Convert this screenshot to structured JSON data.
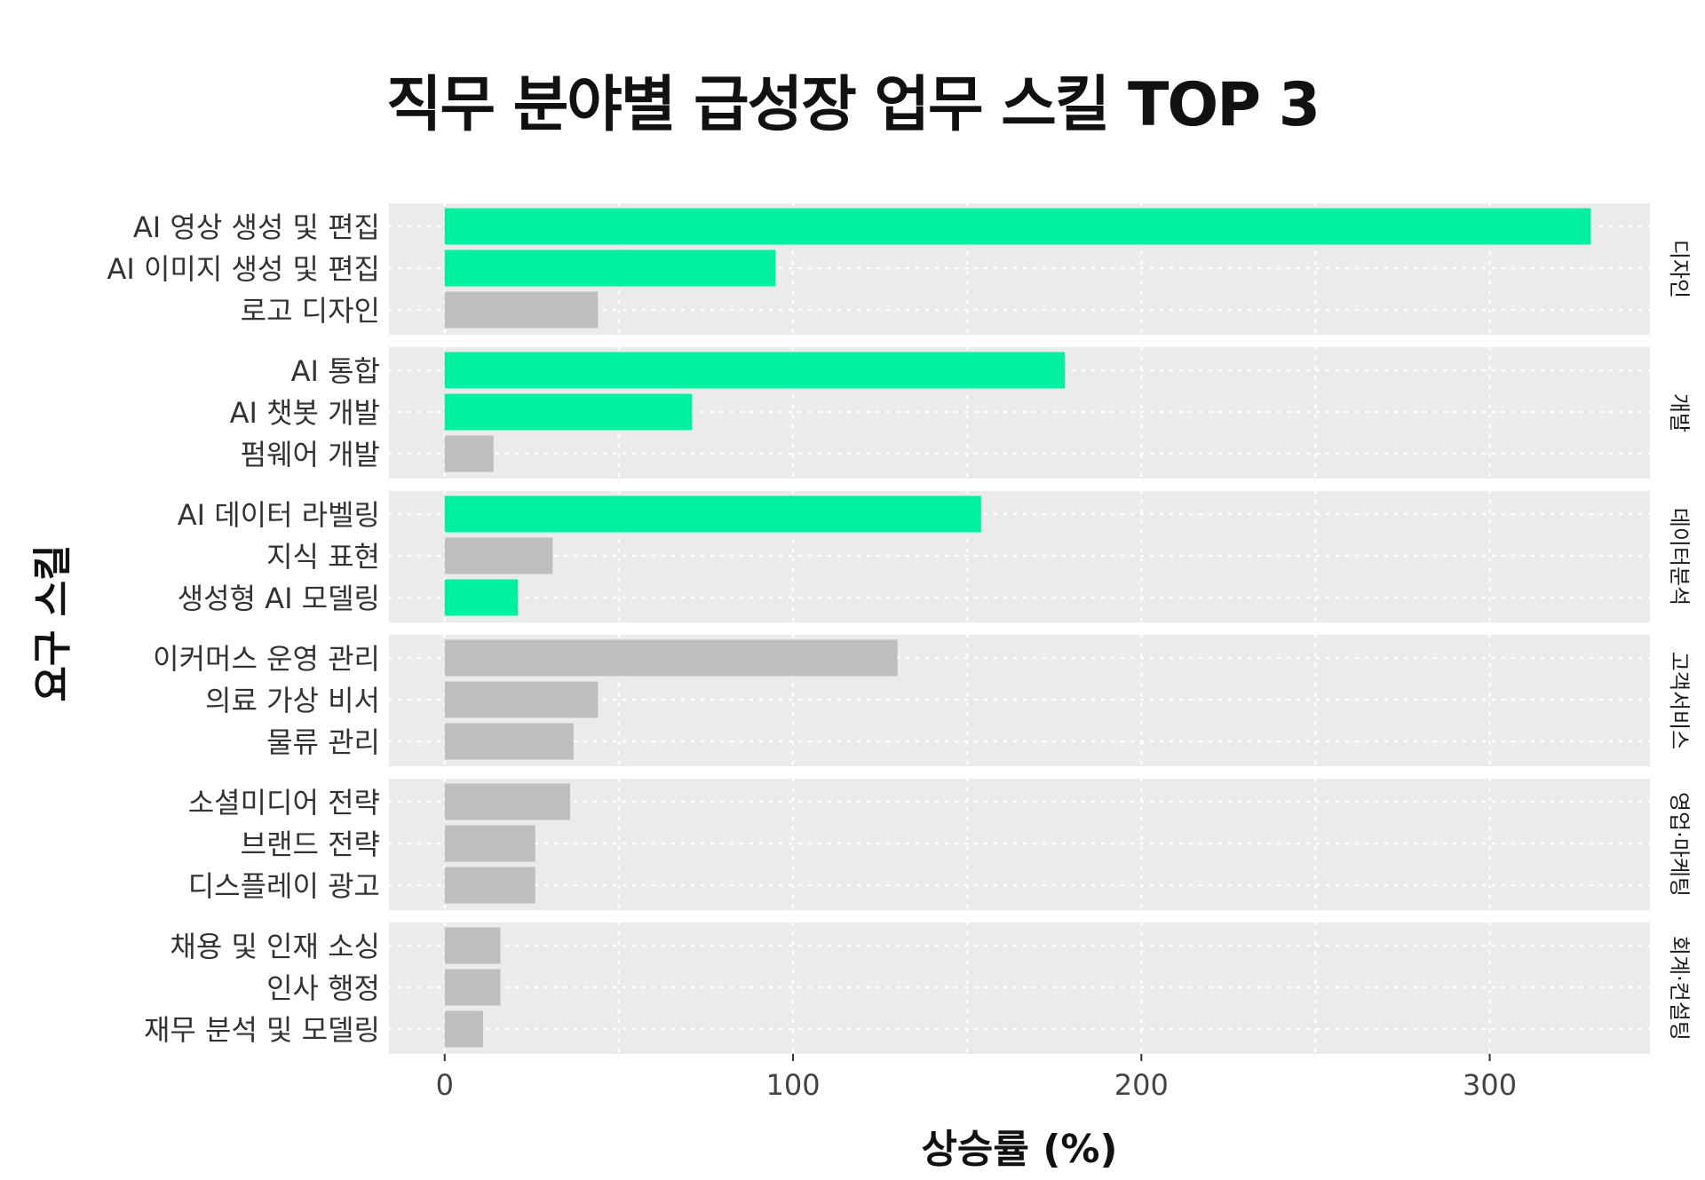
{
  "chart_data": {
    "type": "bar",
    "orientation": "horizontal",
    "title": "직무 분야별 급성장 업무 스킬 TOP 3",
    "xlabel": "상승률 (%)",
    "ylabel": "요구 스킬",
    "xlim": [
      -16,
      346
    ],
    "xticks": [
      0,
      100,
      200,
      300
    ],
    "grid": true,
    "colors": {
      "highlight": "#00F0A0",
      "normal": "#BEBEBE",
      "panel": "#EBEBEB",
      "gridline": "#FFFFFF"
    },
    "facets": [
      {
        "name": "디자인",
        "bars": [
          {
            "label": "AI 영상 생성 및 편집",
            "value": 329,
            "highlight": true
          },
          {
            "label": "AI 이미지 생성 및 편집",
            "value": 95,
            "highlight": true
          },
          {
            "label": "로고 디자인",
            "value": 44,
            "highlight": false
          }
        ]
      },
      {
        "name": "개발",
        "bars": [
          {
            "label": "AI 통합",
            "value": 178,
            "highlight": true
          },
          {
            "label": "AI 챗봇 개발",
            "value": 71,
            "highlight": true
          },
          {
            "label": "펌웨어 개발",
            "value": 14,
            "highlight": false
          }
        ]
      },
      {
        "name": "데이터분석",
        "bars": [
          {
            "label": "AI 데이터 라벨링",
            "value": 154,
            "highlight": true
          },
          {
            "label": "지식 표현",
            "value": 31,
            "highlight": false
          },
          {
            "label": "생성형 AI 모델링",
            "value": 21,
            "highlight": true
          }
        ]
      },
      {
        "name": "고객서비스",
        "bars": [
          {
            "label": "이커머스 운영 관리",
            "value": 130,
            "highlight": false
          },
          {
            "label": "의료 가상 비서",
            "value": 44,
            "highlight": false
          },
          {
            "label": "물류 관리",
            "value": 37,
            "highlight": false
          }
        ]
      },
      {
        "name": "영업·마케팅",
        "bars": [
          {
            "label": "소셜미디어 전략",
            "value": 36,
            "highlight": false
          },
          {
            "label": "브랜드 전략",
            "value": 26,
            "highlight": false
          },
          {
            "label": "디스플레이 광고",
            "value": 26,
            "highlight": false
          }
        ]
      },
      {
        "name": "회계·컨설팅",
        "bars": [
          {
            "label": "채용 및 인재 소싱",
            "value": 16,
            "highlight": false
          },
          {
            "label": "인사 행정",
            "value": 16,
            "highlight": false
          },
          {
            "label": "재무 분석 및 모델링",
            "value": 11,
            "highlight": false
          }
        ]
      }
    ]
  }
}
